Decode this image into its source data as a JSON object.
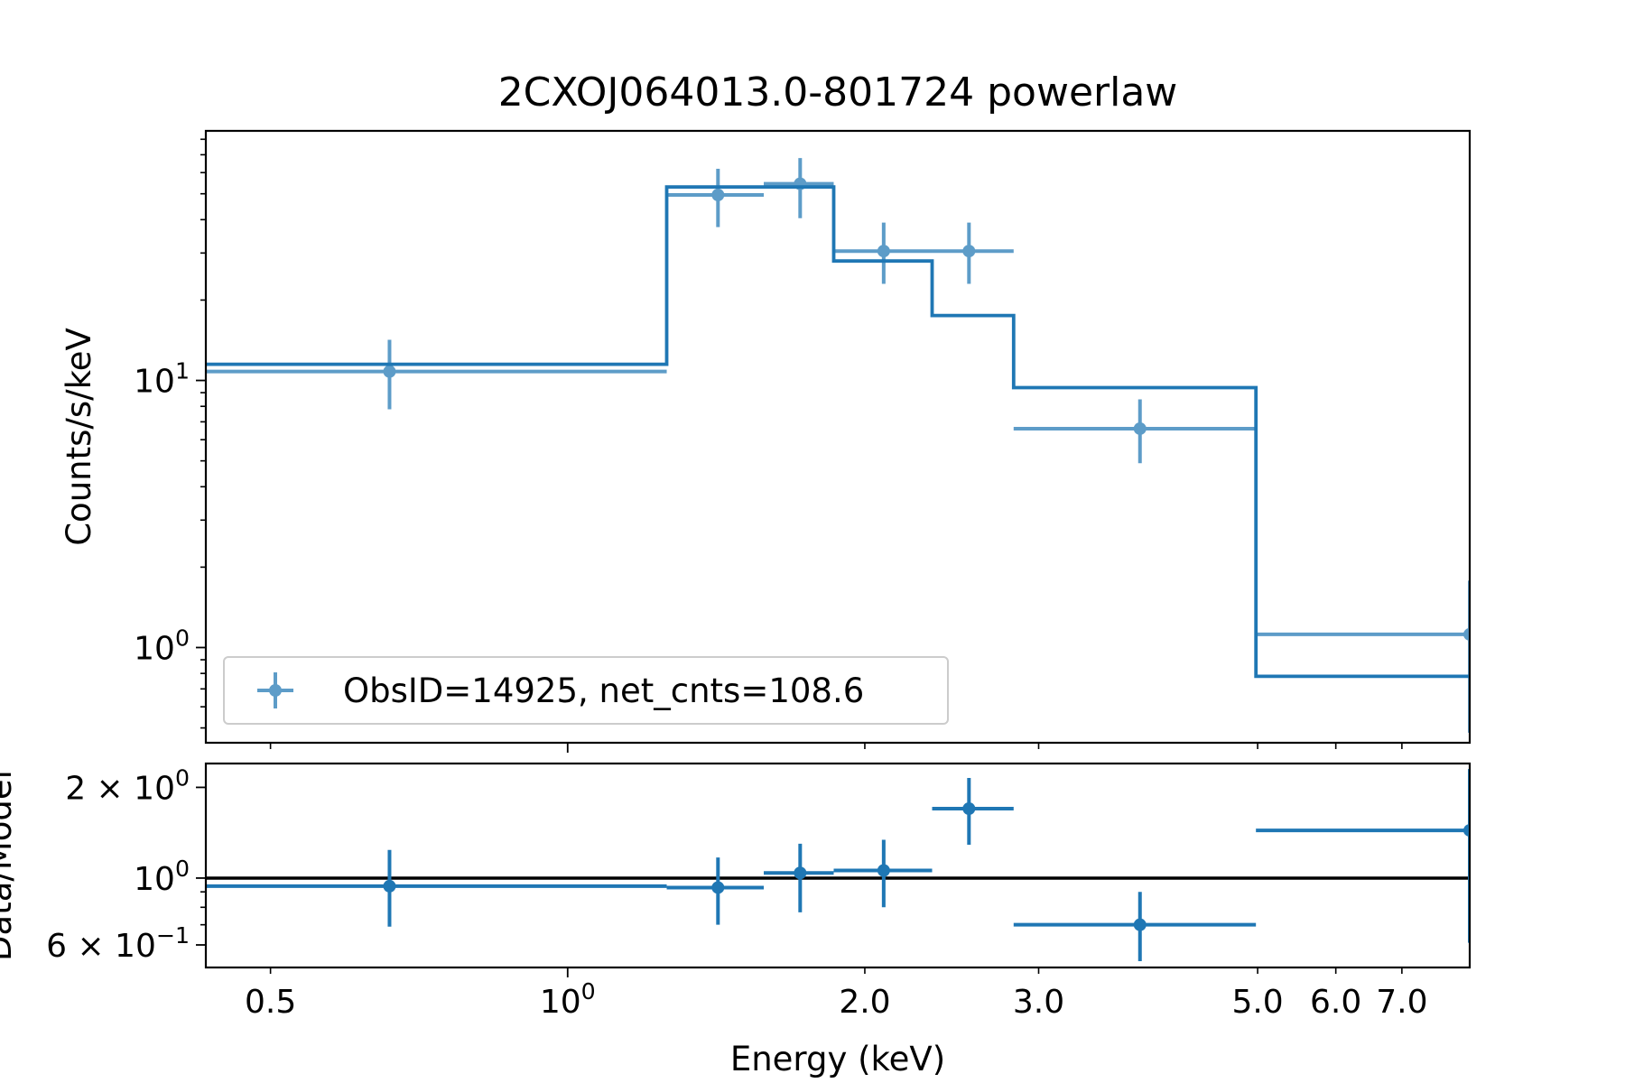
{
  "chart_data": {
    "type": "step",
    "title": "2CXOJ064013.0-801724 powerlaw",
    "xlabel": "Energy (keV)",
    "xscale": "log",
    "xlim": [
      0.43,
      8.2
    ],
    "x_ticks": [
      {
        "value": 0.5,
        "label": "0.5",
        "sup": ""
      },
      {
        "value": 1.0,
        "label": "10",
        "sup": "0"
      },
      {
        "value": 2.0,
        "label": "2.0",
        "sup": ""
      },
      {
        "value": 3.0,
        "label": "3.0",
        "sup": ""
      },
      {
        "value": 5.0,
        "label": "5.0",
        "sup": ""
      },
      {
        "value": 6.0,
        "label": "6.0",
        "sup": ""
      },
      {
        "value": 7.0,
        "label": "7.0",
        "sup": ""
      }
    ],
    "legend": {
      "label": "ObsID=14925, net_cnts=108.6",
      "placement": "lower-left"
    },
    "colors": {
      "data": "#1f77b4",
      "model": "#1f77b4",
      "ratio_line": "#000000"
    },
    "top_panel": {
      "ylabel": "Counts/s/keV",
      "yscale": "log",
      "ylim": [
        0.44,
        86
      ],
      "y_ticks": [
        {
          "value": 1,
          "label": "10",
          "sup": "0"
        },
        {
          "value": 10,
          "label": "10",
          "sup": "1"
        }
      ],
      "data": [
        {
          "x": 0.66,
          "xlo": 0.43,
          "xhi": 1.26,
          "y": 10.8,
          "ylo": 7.8,
          "yhi": 14.2
        },
        {
          "x": 1.42,
          "xlo": 1.26,
          "xhi": 1.58,
          "y": 49.5,
          "ylo": 37.5,
          "yhi": 62.0
        },
        {
          "x": 1.72,
          "xlo": 1.58,
          "xhi": 1.86,
          "y": 54.5,
          "ylo": 40.5,
          "yhi": 68.0
        },
        {
          "x": 2.09,
          "xlo": 1.86,
          "xhi": 2.34,
          "y": 30.5,
          "ylo": 23.0,
          "yhi": 39.0
        },
        {
          "x": 2.55,
          "xlo": 2.34,
          "xhi": 2.83,
          "y": 30.5,
          "ylo": 23.0,
          "yhi": 39.0
        },
        {
          "x": 3.8,
          "xlo": 2.83,
          "xhi": 4.98,
          "y": 6.6,
          "ylo": 4.9,
          "yhi": 8.5
        },
        {
          "x": 8.2,
          "xlo": 4.98,
          "xhi": 8.2,
          "y": 1.12,
          "ylo": 0.48,
          "yhi": 1.78
        }
      ],
      "model_steps": [
        {
          "xlo": 0.43,
          "xhi": 1.26,
          "y": 11.5
        },
        {
          "xlo": 1.26,
          "xhi": 1.86,
          "y": 53.0
        },
        {
          "xlo": 1.86,
          "xhi": 2.34,
          "y": 28.0
        },
        {
          "xlo": 2.34,
          "xhi": 2.83,
          "y": 17.5
        },
        {
          "xlo": 2.83,
          "xhi": 4.98,
          "y": 9.4
        },
        {
          "xlo": 4.98,
          "xhi": 8.2,
          "y": 0.78
        }
      ]
    },
    "bottom_panel": {
      "ylabel": "Data/Model",
      "yscale": "log",
      "ylim": [
        0.505,
        2.4
      ],
      "y_ticks": [
        {
          "value": 2.0,
          "label": "2 × 10",
          "sup": "0"
        },
        {
          "value": 1.0,
          "label": "10",
          "sup": "0"
        },
        {
          "value": 0.6,
          "label": "6 × 10",
          "sup": "−1"
        }
      ],
      "reference_line": 1.0,
      "data": [
        {
          "x": 0.66,
          "xlo": 0.43,
          "xhi": 1.26,
          "y": 0.94,
          "ylo": 0.69,
          "yhi": 1.24
        },
        {
          "x": 1.42,
          "xlo": 1.26,
          "xhi": 1.58,
          "y": 0.93,
          "ylo": 0.7,
          "yhi": 1.17
        },
        {
          "x": 1.72,
          "xlo": 1.58,
          "xhi": 1.86,
          "y": 1.04,
          "ylo": 0.77,
          "yhi": 1.3
        },
        {
          "x": 2.09,
          "xlo": 1.86,
          "xhi": 2.34,
          "y": 1.06,
          "ylo": 0.8,
          "yhi": 1.34
        },
        {
          "x": 2.55,
          "xlo": 2.34,
          "xhi": 2.83,
          "y": 1.7,
          "ylo": 1.29,
          "yhi": 2.15
        },
        {
          "x": 3.8,
          "xlo": 2.83,
          "xhi": 4.98,
          "y": 0.7,
          "ylo": 0.53,
          "yhi": 0.9
        },
        {
          "x": 8.2,
          "xlo": 4.98,
          "xhi": 8.2,
          "y": 1.44,
          "ylo": 0.61,
          "yhi": 2.3
        }
      ]
    }
  }
}
